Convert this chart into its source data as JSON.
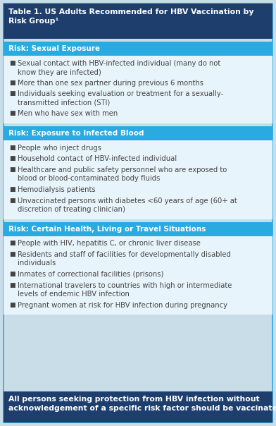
{
  "title": "Table 1. US Adults Recommended for HBV Vaccination by\nRisk Group¹",
  "title_bg": "#1e3f6e",
  "title_color": "#ffffff",
  "title_fontsize": 7.8,
  "sections": [
    {
      "header": "Risk: Sexual Exposure",
      "header_bg": "#29abe2",
      "header_color": "#ffffff",
      "header_fontsize": 7.5,
      "body_bg": "#e8f4fb",
      "item_fontsize": 7.2,
      "items": [
        "Sexual contact with HBV-infected individual (many do not\nknow they are infected)",
        "More than one sex partner during previous 6 months",
        "Individuals seeking evaluation or treatment for a sexually-\ntransmitted infection (STI)",
        "Men who have sex with men"
      ]
    },
    {
      "header": "Risk: Exposure to Infected Blood",
      "header_bg": "#29abe2",
      "header_color": "#ffffff",
      "header_fontsize": 7.5,
      "body_bg": "#e8f4fb",
      "item_fontsize": 7.2,
      "items": [
        "People who inject drugs",
        "Household contact of HBV-infected individual",
        "Healthcare and public safety personnel who are exposed to\nblood or blood-contaminated body fluids",
        "Hemodialysis patients",
        "Unvaccinated persons with diabetes <60 years of age (60+ at\ndiscretion of treating clinician)"
      ]
    },
    {
      "header": "Risk: Certain Health, Living or Travel Situations",
      "header_bg": "#29abe2",
      "header_color": "#ffffff",
      "header_fontsize": 7.5,
      "body_bg": "#e8f4fb",
      "item_fontsize": 7.2,
      "items": [
        "People with HIV, hepatitis C, or chronic liver disease",
        "Residents and staff of facilities for developmentally disabled\nindividuals",
        "Inmates of correctional facilities (prisons)",
        "International travelers to countries with high or intermediate\nlevels of endemic HBV infection",
        "Pregnant women at risk for HBV infection during pregnancy"
      ]
    }
  ],
  "footer": "All persons seeking protection from HBV infection without\nacknowledgement of a specific risk factor should be vaccinated",
  "footer_bg": "#1e3f6e",
  "footer_color": "#ffffff",
  "footer_fontsize": 7.8,
  "outer_bg": "#c8dde8",
  "border_color": "#29abe2",
  "item_color": "#444444",
  "bullet": "■"
}
